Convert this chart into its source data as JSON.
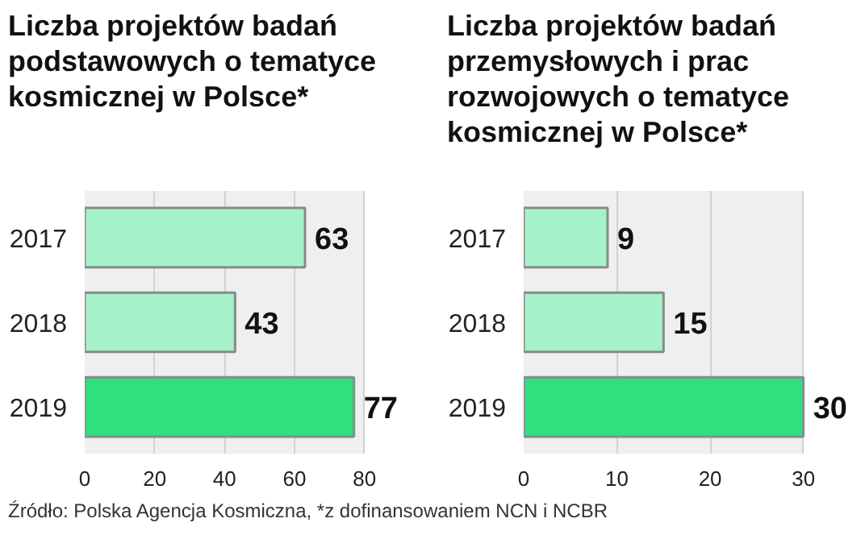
{
  "chart_data": [
    {
      "type": "bar",
      "orientation": "horizontal",
      "title": "Liczba projektów badań podstawowych o tematyce kosmicznej w Polsce*",
      "categories": [
        "2017",
        "2018",
        "2019"
      ],
      "values": [
        63,
        43,
        77
      ],
      "colors": [
        "#a6f2c8",
        "#a6f2c8",
        "#2fe07e"
      ],
      "xlim": [
        0,
        80
      ],
      "xticks": [
        0,
        20,
        40,
        60,
        80
      ],
      "grid": "x",
      "data_labels": true,
      "annotations": [
        "Źródło: Polska Agencja Kosmiczna, *z dofinansowaniem NCN i NCBR"
      ]
    },
    {
      "type": "bar",
      "orientation": "horizontal",
      "title": "Liczba projektów badań przemysłowych i prac rozwojowych o tematyce kosmicznej w Polsce*",
      "categories": [
        "2017",
        "2018",
        "2019"
      ],
      "values": [
        9,
        15,
        30
      ],
      "colors": [
        "#a6f2c8",
        "#a6f2c8",
        "#2fe07e"
      ],
      "xlim": [
        0,
        30
      ],
      "xticks": [
        0,
        10,
        20,
        30
      ],
      "grid": "x",
      "data_labels": true
    }
  ]
}
